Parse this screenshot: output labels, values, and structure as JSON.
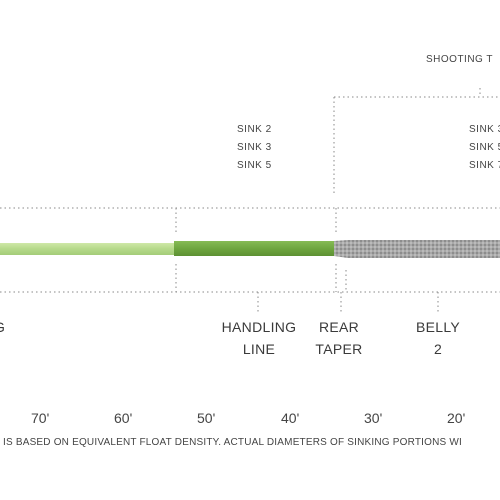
{
  "labels": {
    "shooting_head": "SHOOTING T",
    "sink_group_left": [
      "SINK 2",
      "SINK 3",
      "SINK 5"
    ],
    "sink_group_right": [
      "SINK 3",
      "SINK 5",
      "SINK 7"
    ],
    "running_line_partial": "G",
    "handling_line": [
      "HANDLING",
      "LINE"
    ],
    "rear_taper": [
      "REAR",
      "TAPER"
    ],
    "belly": [
      "BELLY",
      "2"
    ]
  },
  "scale": [
    "70'",
    "60'",
    "50'",
    "40'",
    "30'",
    "20'"
  ],
  "footnote": "IS BASED ON EQUIVALENT FLOAT DENSITY.  ACTUAL DIAMETERS OF SINKING PORTIONS WI",
  "colors": {
    "running_line": "#b5d98a",
    "handling_line": "#6fa640",
    "sinking_head": "#9a9a9a",
    "dotted": "#888888"
  }
}
